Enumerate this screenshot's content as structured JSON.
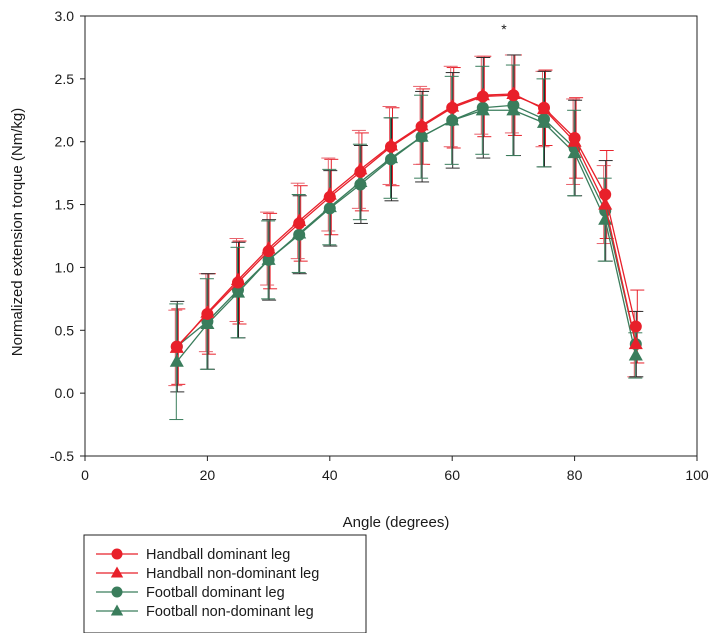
{
  "chart_data": {
    "type": "line",
    "title": "",
    "xlabel": "Angle (degrees)",
    "ylabel": "Normalized extension torque (Nm/kg)",
    "xlim": [
      0,
      100
    ],
    "ylim": [
      -0.5,
      3.0
    ],
    "xticks": [
      0,
      20,
      40,
      60,
      80,
      100
    ],
    "xtick_labels": [
      "0",
      "20",
      "40",
      "60",
      "80",
      "100"
    ],
    "yticks": [
      -0.5,
      0.0,
      0.5,
      1.0,
      1.5,
      2.0,
      2.5,
      3.0
    ],
    "ytick_labels": [
      "-0.5",
      "0.0",
      "0.5",
      "1.0",
      "1.5",
      "2.0",
      "2.5",
      "3.0"
    ],
    "grid": false,
    "legend_position": "below",
    "annotations": [
      {
        "text": "*",
        "x": 68.5,
        "y": 2.9
      }
    ],
    "x": [
      15,
      20,
      25,
      30,
      35,
      40,
      45,
      50,
      55,
      60,
      65,
      70,
      75,
      80,
      85,
      90
    ],
    "series": [
      {
        "name": "Handball dominant leg",
        "color": "#e8202a",
        "marker": "circle",
        "values": [
          0.37,
          0.63,
          0.88,
          1.13,
          1.35,
          1.56,
          1.76,
          1.96,
          2.12,
          2.27,
          2.36,
          2.37,
          2.27,
          2.03,
          1.58,
          0.53
        ],
        "sd": [
          0.3,
          0.32,
          0.33,
          0.3,
          0.3,
          0.3,
          0.31,
          0.31,
          0.3,
          0.32,
          0.32,
          0.32,
          0.3,
          0.32,
          0.35,
          0.29
        ]
      },
      {
        "name": "Handball non-dominant leg",
        "color": "#e8202a",
        "marker": "triangle",
        "values": [
          0.36,
          0.64,
          0.9,
          1.15,
          1.37,
          1.58,
          1.78,
          1.97,
          2.13,
          2.28,
          2.37,
          2.38,
          2.26,
          2.0,
          1.5,
          0.39
        ],
        "sd": [
          0.3,
          0.31,
          0.33,
          0.29,
          0.3,
          0.29,
          0.31,
          0.31,
          0.31,
          0.32,
          0.31,
          0.31,
          0.3,
          0.34,
          0.31,
          0.26
        ]
      },
      {
        "name": "Football dominant leg",
        "color": "#3a7d5c",
        "marker": "circle",
        "values": [
          0.37,
          0.57,
          0.82,
          1.06,
          1.26,
          1.47,
          1.66,
          1.86,
          2.04,
          2.17,
          2.27,
          2.29,
          2.18,
          1.95,
          1.45,
          0.39
        ],
        "sd": [
          0.36,
          0.38,
          0.38,
          0.32,
          0.31,
          0.3,
          0.31,
          0.33,
          0.36,
          0.38,
          0.4,
          0.4,
          0.38,
          0.38,
          0.4,
          0.26
        ]
      },
      {
        "name": "Football non-dominant leg",
        "color": "#3a7d5c",
        "marker": "triangle",
        "values": [
          0.25,
          0.55,
          0.8,
          1.06,
          1.27,
          1.48,
          1.68,
          1.87,
          2.04,
          2.17,
          2.25,
          2.25,
          2.15,
          1.91,
          1.38,
          0.3
        ],
        "sd": [
          0.46,
          0.36,
          0.36,
          0.31,
          0.31,
          0.3,
          0.3,
          0.32,
          0.33,
          0.35,
          0.35,
          0.36,
          0.35,
          0.34,
          0.33,
          0.18
        ]
      }
    ]
  }
}
